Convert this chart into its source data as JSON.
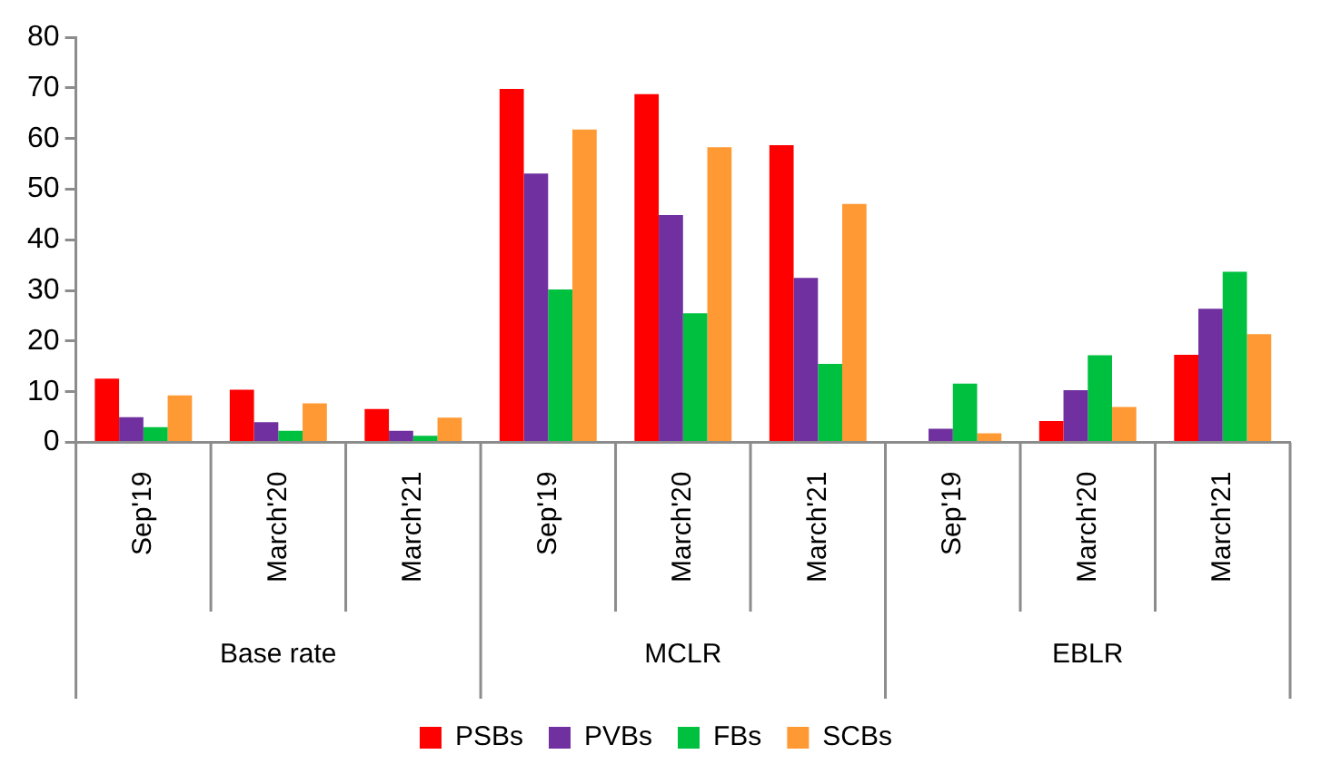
{
  "chart_data": {
    "type": "bar",
    "categories": [
      "Sep'19",
      "March'20",
      "March'21",
      "Sep'19",
      "March'20",
      "March'21",
      "Sep'19",
      "March'20",
      "March'21"
    ],
    "annotations": [
      "Base rate",
      "MCLR",
      "EBLR"
    ],
    "series": [
      {
        "name": "PSBs",
        "color": "#ff0000",
        "values": [
          12.6,
          10.4,
          6.6,
          69.8,
          68.8,
          58.7,
          null,
          4.2,
          17.3
        ]
      },
      {
        "name": "PVBs",
        "color": "#7030a0",
        "values": [
          5.0,
          4.0,
          2.3,
          53.1,
          44.9,
          32.5,
          2.7,
          10.3,
          26.4
        ]
      },
      {
        "name": "FBs",
        "color": "#00c040",
        "values": [
          3.0,
          2.3,
          1.3,
          30.2,
          25.5,
          15.5,
          11.6,
          17.2,
          33.7
        ]
      },
      {
        "name": "SCBs",
        "color": "#ff9933",
        "values": [
          9.3,
          7.7,
          4.9,
          61.8,
          58.3,
          47.1,
          1.8,
          7.0,
          21.4
        ]
      }
    ],
    "ylim": [
      0,
      80
    ],
    "yticks": [
      0,
      10,
      20,
      30,
      40,
      50,
      60,
      70,
      80
    ],
    "grid": false,
    "legend": "bottom"
  }
}
